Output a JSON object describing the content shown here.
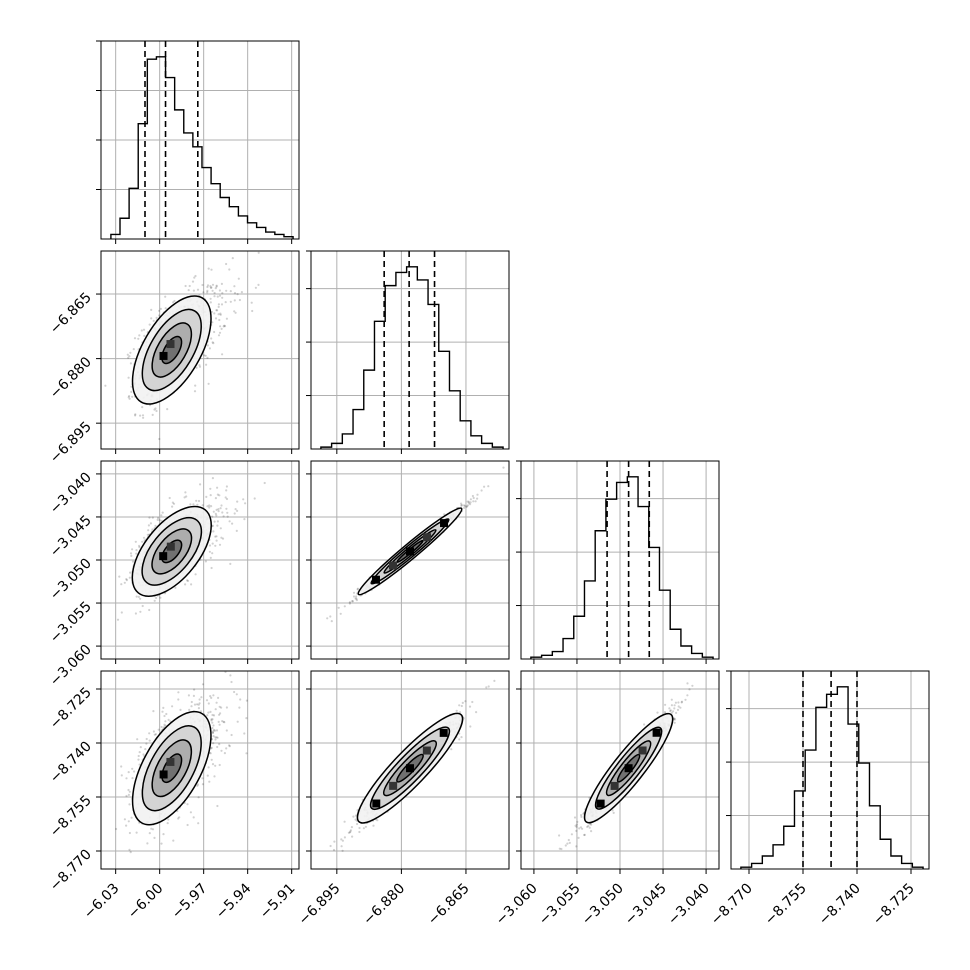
{
  "chart_data": {
    "type": "corner",
    "grid": true,
    "params": [
      {
        "range": [
          -6.04,
          -5.905
        ],
        "ticks": [
          -6.03,
          -6.0,
          -5.97,
          -5.94,
          -5.91
        ],
        "tick_labels": [
          "−6.03",
          "−6.00",
          "−5.97",
          "−5.94",
          "−5.91"
        ],
        "quantiles": [
          -6.01,
          -5.996,
          -5.974
        ],
        "mean": -5.995,
        "sd": 0.013,
        "skew": 0.9
      },
      {
        "range": [
          -6.901,
          -6.855
        ],
        "ticks": [
          -6.895,
          -6.88,
          -6.865
        ],
        "tick_labels": [
          "−6.895",
          "−6.880",
          "−6.865"
        ],
        "quantiles": [
          -6.884,
          -6.8782,
          -6.8723
        ],
        "mean": -6.878,
        "sd": 0.006,
        "skew": 0
      },
      {
        "range": [
          -3.0615,
          -3.0385
        ],
        "ticks": [
          -3.06,
          -3.055,
          -3.05,
          -3.045,
          -3.04
        ],
        "tick_labels": [
          "−3.060",
          "−3.055",
          "−3.050",
          "−3.045",
          "−3.040"
        ],
        "quantiles": [
          -3.0515,
          -3.049,
          -3.0466
        ],
        "mean": -3.049,
        "sd": 0.0025,
        "skew": 0
      },
      {
        "range": [
          -8.775,
          -8.72
        ],
        "ticks": [
          -8.77,
          -8.755,
          -8.74,
          -8.725
        ],
        "tick_labels": [
          "−8.770",
          "−8.755",
          "−8.740",
          "−8.725"
        ],
        "quantiles": [
          -8.755,
          -8.7472,
          -8.74
        ],
        "mean": -8.747,
        "sd": 0.0075,
        "skew": 0
      }
    ],
    "histogram_heights": [
      [
        2,
        9,
        22,
        50,
        78,
        79,
        70,
        56,
        46,
        40,
        31,
        24,
        18,
        14,
        10,
        7,
        5,
        3,
        2,
        1
      ],
      [
        1,
        3,
        8,
        21,
        42,
        68,
        87,
        94,
        97,
        90,
        77,
        52,
        31,
        15,
        7,
        3,
        1
      ],
      [
        1,
        2,
        4,
        11,
        23,
        42,
        69,
        86,
        95,
        98,
        82,
        60,
        37,
        16,
        7,
        3,
        1
      ],
      [
        1,
        3,
        7,
        13,
        23,
        42,
        64,
        87,
        94,
        98,
        78,
        57,
        34,
        16,
        7,
        3,
        1
      ]
    ],
    "correlations": {
      "0-1": 0.55,
      "0-2": 0.55,
      "0-3": 0.55,
      "1-2": 0.99,
      "1-3": 0.96,
      "2-3": 0.96
    }
  }
}
